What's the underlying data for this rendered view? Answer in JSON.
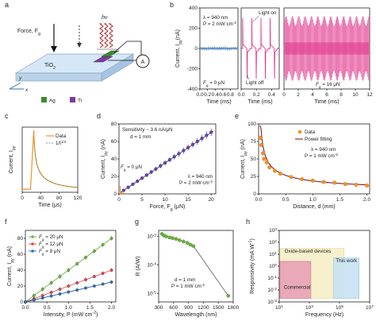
{
  "panel_labels": [
    "a",
    "b",
    "c",
    "d",
    "e",
    "f",
    "g",
    "h"
  ],
  "colors": {
    "substrate": "#d6e7f7",
    "substrate_edge": "#8aa7c4",
    "ag": "#3e8a2e",
    "ti": "#7a3c9c",
    "light_wave": "#b22222",
    "magenta": "#e0338a",
    "trace_blue": "#3a77b8",
    "orange": "#f2922a",
    "green": "#6db33f",
    "red": "#e0474c",
    "blue": "#2f6fb5",
    "dark_red": "#7b1e2a"
  },
  "schematic": {
    "force_label": "Force, F",
    "force_sub": "g",
    "hv_label": "hν",
    "substrate_label": "TiO",
    "substrate_sub": "2",
    "axis_x": "x",
    "axis_y": "y",
    "ammeter": "A",
    "legend_ag": "Ag",
    "legend_ti": "Ti"
  },
  "chart_data": [
    {
      "panel": "b",
      "type": "line",
      "ylabel": "Current, I",
      "ylabel_sub": "py",
      "ylabel_unit": "(nA)",
      "ylim": [
        -400,
        400
      ],
      "yticks": [
        -400,
        -200,
        0,
        200,
        400
      ],
      "subplots": [
        {
          "xlabel": "Time (ms)",
          "xlim": [
            0,
            1
          ],
          "xticks": [
            0.0,
            0.2,
            0.4,
            0.6,
            0.8
          ],
          "annotation_lines": [
            "λ = 940 nm",
            "P = 2 mW cm"
          ],
          "annotation_sup": "-2",
          "force_label": "F",
          "force_sub": "g",
          "force_value": " = 0 μN",
          "trace": "flat_noise",
          "value": 0
        },
        {
          "xlabel": "Time (ms)",
          "xlim": [
            0,
            0.5
          ],
          "xticks": [
            0.0,
            0.2,
            0.4
          ],
          "light_on": "Light on",
          "light_off": "Light off",
          "trace": "pulses",
          "pulse_times": [
            0.02,
            0.14,
            0.26,
            0.38
          ],
          "pulse_height": 300
        },
        {
          "xlabel": "Time (ms)",
          "xlim": [
            0,
            12
          ],
          "xticks": [
            0,
            2,
            4,
            6,
            8,
            10,
            12
          ],
          "force_label": "F",
          "force_sub": "g",
          "force_value": " = 16 μN",
          "trace": "dense_pulses",
          "amplitude": 320
        }
      ]
    },
    {
      "panel": "c",
      "type": "line",
      "xlabel": "Time (μs)",
      "ylabel": "Current, I",
      "ylabel_sub": "py",
      "xlim": [
        0,
        120
      ],
      "xticks": [
        0,
        40,
        80,
        120
      ],
      "series": [
        {
          "name": "Data"
        },
        {
          "name": "1/t",
          "name_sup": "1/2"
        }
      ],
      "rise_time": 18,
      "peak_time": 25,
      "baseline": 0.05
    },
    {
      "panel": "d",
      "type": "scatter",
      "xlabel": "Force, F",
      "xlabel_sub": "g",
      "xlabel_unit": " (μN)",
      "ylabel": "Current, I",
      "ylabel_sub": "py",
      "ylabel_unit": " (nA)",
      "xlim": [
        0,
        21
      ],
      "ylim": [
        0,
        80
      ],
      "xticks": [
        0,
        5,
        10,
        15,
        20
      ],
      "yticks": [
        0,
        20,
        40,
        60,
        80
      ],
      "x": [
        1,
        2,
        3,
        4,
        5,
        6,
        7,
        8,
        9,
        10,
        11,
        12,
        13,
        14,
        15,
        16,
        17,
        18,
        19,
        20
      ],
      "y": [
        4,
        7.5,
        11,
        14.5,
        18,
        21.5,
        25,
        28.5,
        32,
        35.5,
        39,
        42.5,
        46,
        49.5,
        53,
        56.5,
        60,
        63.5,
        67,
        70.5
      ],
      "err": [
        1.5,
        1.7,
        1.9,
        2.0,
        2.2,
        2.4,
        2.5,
        2.7,
        2.8,
        3.0,
        3.1,
        3.3,
        3.4,
        3.5,
        3.7,
        3.8,
        4.0,
        4.1,
        4.2,
        4.4
      ],
      "fit": {
        "x": [
          0,
          20.5
        ],
        "y": [
          0.5,
          72
        ]
      },
      "spike": {
        "x": 0.3,
        "y": 9
      },
      "ann_sensitivity": "Sensitivity ~ 3.6 nA/μN",
      "ann_d": "d = 1 mm",
      "ann_fg_label": "F",
      "ann_fg_sub": "g",
      "ann_fg_value": " = 0 μN",
      "ann_lambda": "λ = 940 nm",
      "ann_p": "P = 2 mW cm",
      "ann_p_sup": "-2"
    },
    {
      "panel": "e",
      "type": "scatter",
      "xlabel": "Distance, d (mm)",
      "ylabel": "Current, I",
      "ylabel_sub": "py",
      "ylabel_unit": " (nA)",
      "xlim": [
        0,
        2.05
      ],
      "ylim": [
        0,
        100
      ],
      "xticks": [
        0.0,
        0.5,
        1.0,
        1.5,
        2.0
      ],
      "yticks": [
        0,
        25,
        50,
        75,
        100
      ],
      "series": [
        {
          "name": "Data",
          "x": [
            0.03,
            0.05,
            0.08,
            0.1,
            0.15,
            0.2,
            0.3,
            0.4,
            0.6,
            0.8,
            1.0,
            1.2,
            1.4,
            1.6,
            1.8,
            2.0
          ],
          "y": [
            80,
            70,
            58,
            50,
            45,
            38,
            33,
            29,
            24,
            21,
            19,
            17,
            16,
            14,
            13,
            12
          ]
        },
        {
          "name": "Power fitting",
          "a": 18.5,
          "b": -0.52
        }
      ],
      "ann_lambda": "λ = 940 nm",
      "ann_p": "P = 1 mW cm",
      "ann_p_sup": "-2"
    },
    {
      "panel": "f",
      "type": "line",
      "xlabel": "Intensity, P (mW cm",
      "xlabel_sup": "-2",
      "xlabel_end": ")",
      "ylabel": "Current, I",
      "ylabel_sub": "py",
      "ylabel_unit": " (nA)",
      "xlim": [
        0,
        2.1
      ],
      "ylim": [
        0,
        90
      ],
      "xticks": [
        0.0,
        0.5,
        1.0,
        1.5,
        2.0
      ],
      "yticks": [
        0,
        20,
        40,
        60,
        80
      ],
      "x": [
        0.0,
        0.2,
        0.4,
        0.6,
        0.8,
        1.0,
        1.2,
        1.4,
        1.6,
        1.8,
        2.0
      ],
      "series": [
        {
          "label": "F",
          "label_sub": "g",
          "label_value": " = 20 μN",
          "y": [
            0,
            8,
            16,
            24,
            32,
            40,
            48,
            56,
            64,
            72,
            80
          ],
          "err": 3
        },
        {
          "label": "F",
          "label_sub": "g",
          "label_value": " = 12 μN",
          "y": [
            0,
            4,
            8,
            12,
            16,
            20,
            24,
            28,
            32,
            36,
            40
          ],
          "err": 2.5
        },
        {
          "label": "F",
          "label_sub": "g",
          "label_value": " = 8 μN",
          "y": [
            0,
            2.5,
            5,
            7.5,
            10,
            12.5,
            15,
            17.5,
            20,
            22.5,
            25
          ],
          "err": 2
        }
      ]
    },
    {
      "panel": "g",
      "type": "line",
      "xlabel": "Wavelength (nm)",
      "ylabel": "R (A/W)",
      "yscale": "log",
      "xlim": [
        300,
        1800
      ],
      "ylim_exp": [
        -5.3,
        -2.8
      ],
      "xticks": [
        300,
        600,
        900,
        1200,
        1500,
        1800
      ],
      "yticks_exp": [
        -5,
        -4,
        -3
      ],
      "ytick_labels": [
        {
          "base": "10",
          "sup": "-5"
        },
        {
          "base": "10",
          "sup": "-4"
        },
        {
          "base": "10",
          "sup": "-3"
        }
      ],
      "x": [
        365,
        405,
        450,
        520,
        580,
        650,
        720,
        800,
        880,
        940,
        1000,
        1700
      ],
      "y": [
        0.0012,
        0.00105,
        0.00098,
        0.0009,
        0.00085,
        0.0008,
        0.00072,
        0.00065,
        0.00058,
        0.0005,
        0.00045,
        8.2e-06
      ],
      "ann_d": "d = 1 mm",
      "ann_p": "P = 1 mW cm",
      "ann_p_sup": "-2"
    },
    {
      "panel": "h",
      "type": "area",
      "xlabel": "Frequency (Hz)",
      "ylabel": "Responsivity (mA W",
      "ylabel_sup": "-1",
      "ylabel_end": ")",
      "xscale": "log",
      "yscale": "log",
      "xlim_exp": [
        1,
        7
      ],
      "ylim_exp": [
        -3,
        3
      ],
      "xtick_labels": [
        {
          "base": "10",
          "sup": "1",
          "exp": 1
        },
        {
          "base": "10",
          "sup": "3",
          "exp": 3
        },
        {
          "base": "10",
          "sup": "5",
          "exp": 5
        },
        {
          "base": "10",
          "sup": "7",
          "exp": 7
        }
      ],
      "ytick_labels": [
        {
          "base": "10",
          "sup": "-3",
          "exp": -3
        },
        {
          "base": "10",
          "sup": "-2",
          "exp": -2
        },
        {
          "base": "10",
          "sup": "-1",
          "exp": -1
        },
        {
          "base": "10",
          "sup": "0",
          "exp": 0
        },
        {
          "base": "10",
          "sup": "1",
          "exp": 1
        },
        {
          "base": "10",
          "sup": "2",
          "exp": 2
        },
        {
          "base": "10",
          "sup": "3",
          "exp": 3
        }
      ],
      "regions": [
        {
          "name": "Oxide-based devices",
          "x_exp": [
            1.05,
            5.3
          ],
          "y_exp": [
            -2.7,
            1.5
          ],
          "fill": "#f7efc8",
          "stroke": "#e6d48a"
        },
        {
          "name": "Commercial",
          "x_exp": [
            1.05,
            3.1
          ],
          "y_exp": [
            -2.7,
            0.4
          ],
          "fill": "#e8a3b7",
          "stroke": "#d86a8a"
        },
        {
          "name": "This work",
          "x_exp": [
            4.6,
            6.3
          ],
          "y_exp": [
            -2.7,
            0.7
          ],
          "fill": "#c9e3f4",
          "stroke": "#8fc3e2"
        }
      ]
    }
  ]
}
